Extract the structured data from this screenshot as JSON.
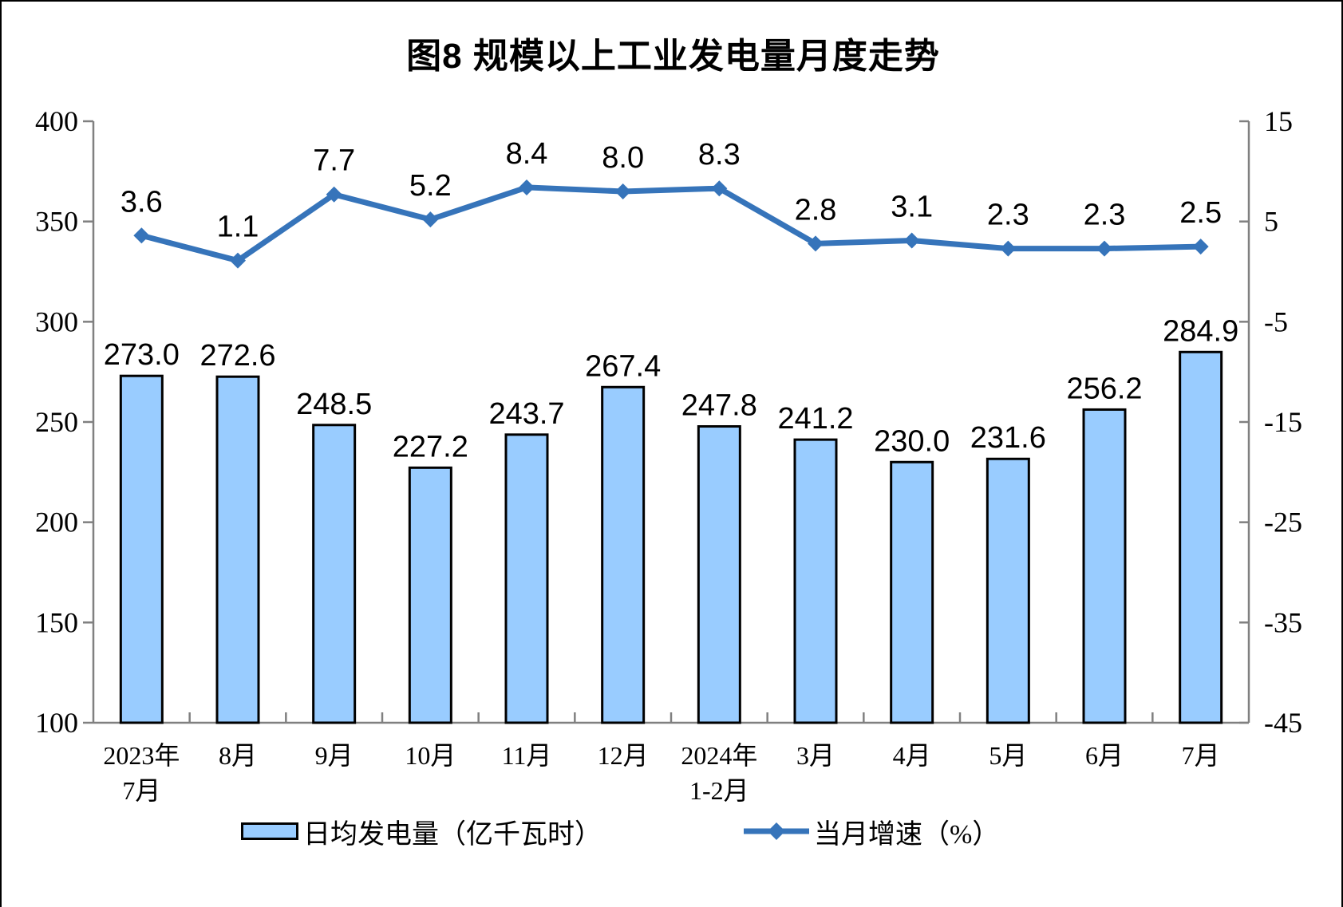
{
  "title": "图8 规模以上工业发电量月度走势",
  "chart_data": {
    "type": "bar+line combo",
    "title": "图8 规模以上工业发电量月度走势",
    "categories": [
      [
        "2023年",
        "7月"
      ],
      [
        "8月"
      ],
      [
        "9月"
      ],
      [
        "10月"
      ],
      [
        "11月"
      ],
      [
        "12月"
      ],
      [
        "2024年",
        "1-2月"
      ],
      [
        "3月"
      ],
      [
        "4月"
      ],
      [
        "5月"
      ],
      [
        "6月"
      ],
      [
        "7月"
      ]
    ],
    "series": [
      {
        "name": "日均发电量（亿千瓦时）",
        "type": "bar",
        "axis": "left",
        "color": "#99CCFF",
        "border_color": "#000000",
        "values": [
          273.0,
          272.6,
          248.5,
          227.2,
          243.7,
          267.4,
          247.8,
          241.2,
          230.0,
          231.6,
          256.2,
          284.9
        ]
      },
      {
        "name": "当月增速（%）",
        "type": "line",
        "axis": "right",
        "color": "#3674BA",
        "values": [
          3.6,
          1.1,
          7.7,
          5.2,
          8.4,
          8.0,
          8.3,
          2.8,
          3.1,
          2.3,
          2.3,
          2.5
        ]
      }
    ],
    "left_axis": {
      "min": 100,
      "max": 400,
      "ticks": [
        400,
        350,
        300,
        250,
        200,
        150,
        100
      ]
    },
    "right_axis": {
      "min": -45,
      "max": 15,
      "ticks": [
        15,
        5,
        -5,
        -15,
        -25,
        -35,
        -45
      ]
    },
    "grid": false,
    "legend_position": "bottom",
    "axis_color": "#808080",
    "label_decimals": 1
  },
  "legend": {
    "bar_label": "日均发电量（亿千瓦时）",
    "line_label": "当月增速（%）"
  }
}
